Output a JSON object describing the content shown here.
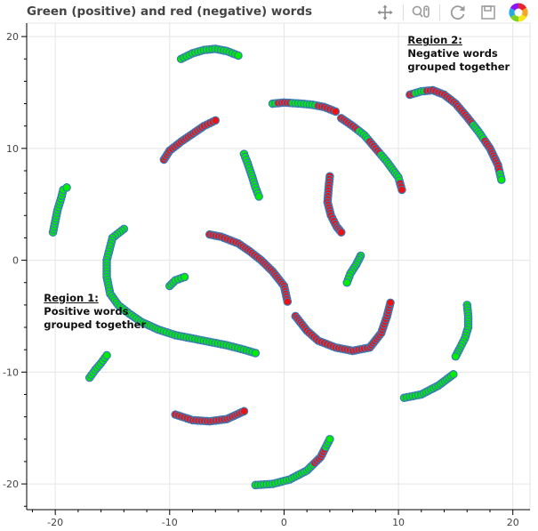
{
  "title": "Green (positive) and red (negative) words",
  "toolbar": {
    "tools": [
      {
        "name": "pan-tool",
        "icon": "pan-icon",
        "active": true
      },
      {
        "name": "wheel-zoom-tool",
        "icon": "wheel-zoom-icon",
        "active": false
      },
      {
        "name": "reset-tool",
        "icon": "reset-icon",
        "active": false
      },
      {
        "name": "save-tool",
        "icon": "save-icon",
        "active": false
      },
      {
        "name": "bokeh-logo",
        "icon": "bokeh-logo-icon",
        "active": false
      }
    ]
  },
  "annotations": [
    {
      "heading": "Region 1:",
      "lines": [
        "Positive words",
        "grouped together"
      ],
      "x": -21,
      "y": -3.5
    },
    {
      "heading": "Region 2:",
      "lines": [
        "Negative words",
        "grouped together"
      ],
      "x": 10.8,
      "y": 19.5
    }
  ],
  "chart_data": {
    "type": "scatter",
    "title": "Green (positive) and red (negative) words",
    "xlabel": "",
    "ylabel": "",
    "xlim": [
      -22.5,
      21.5
    ],
    "ylim": [
      -22.3,
      21.2
    ],
    "xticks": [
      -20,
      -10,
      0,
      10,
      20
    ],
    "yticks": [
      -20,
      -10,
      0,
      10,
      20
    ],
    "grid": true,
    "colors": {
      "positive": "#00ee00",
      "negative": "#ee1111",
      "neutral": "#3a7ab8",
      "outline": "#3a7ab8"
    },
    "clusters": [
      {
        "pts": [
          [
            -9,
            18
          ],
          [
            -8,
            18.5
          ],
          [
            -7,
            18.8
          ],
          [
            -6,
            18.9
          ],
          [
            -5,
            18.7
          ],
          [
            -4,
            18.3
          ]
        ],
        "labels": "PPPPPP"
      },
      {
        "pts": [
          [
            -10.5,
            9
          ],
          [
            -10,
            9.8
          ],
          [
            -9,
            10.6
          ],
          [
            -8,
            11.3
          ],
          [
            -7,
            12
          ],
          [
            -6,
            12.5
          ]
        ],
        "labels": "NNNNNN"
      },
      {
        "pts": [
          [
            -20.2,
            2.5
          ],
          [
            -20,
            3.5
          ],
          [
            -19.8,
            4.5
          ],
          [
            -19.5,
            5.5
          ],
          [
            -19.3,
            6.3
          ],
          [
            -19,
            6.5
          ]
        ],
        "labels": "PPPPPP"
      },
      {
        "pts": [
          [
            -3.5,
            9.5
          ],
          [
            -3.2,
            8.7
          ],
          [
            -2.8,
            7.5
          ],
          [
            -2.5,
            6.5
          ],
          [
            -2.2,
            5.7
          ]
        ],
        "labels": "PPPPP"
      },
      {
        "pts": [
          [
            -1,
            14
          ],
          [
            0,
            14.1
          ],
          [
            1.5,
            14
          ],
          [
            2.5,
            13.9
          ],
          [
            3.5,
            13.7
          ],
          [
            4.5,
            13.3
          ]
        ],
        "labels": "PNPPNN"
      },
      {
        "pts": [
          [
            5,
            12.7
          ],
          [
            6,
            12
          ],
          [
            7,
            11.2
          ],
          [
            8,
            10
          ],
          [
            9,
            8.8
          ],
          [
            10,
            7.4
          ],
          [
            10.3,
            6.3
          ]
        ],
        "labels": "NNPNPPN"
      },
      {
        "pts": [
          [
            11,
            14.8
          ],
          [
            12,
            15.1
          ],
          [
            13,
            15.2
          ],
          [
            14,
            14.8
          ],
          [
            15,
            14
          ],
          [
            16,
            12.8
          ],
          [
            17,
            11.5
          ],
          [
            18,
            10
          ],
          [
            18.7,
            8.5
          ],
          [
            19,
            7.2
          ]
        ],
        "labels": "NPNNNNPNNP"
      },
      {
        "pts": [
          [
            4,
            7.5
          ],
          [
            3.9,
            6.5
          ],
          [
            3.8,
            5.2
          ],
          [
            4.1,
            4
          ],
          [
            4.6,
            3
          ],
          [
            5,
            2.5
          ]
        ],
        "labels": "NNNNNN"
      },
      {
        "pts": [
          [
            6.7,
            0.4
          ],
          [
            6.3,
            -0.4
          ],
          [
            5.8,
            -1.2
          ],
          [
            5.5,
            -2
          ]
        ],
        "labels": "PPPP"
      },
      {
        "pts": [
          [
            -14,
            2.8
          ],
          [
            -15,
            2
          ],
          [
            -15.5,
            0
          ],
          [
            -15.5,
            -1.5
          ],
          [
            -15.2,
            -3
          ],
          [
            -14.5,
            -4
          ],
          [
            -13.5,
            -4.8
          ],
          [
            -12.5,
            -5.5
          ],
          [
            -11,
            -6.2
          ],
          [
            -9.5,
            -6.7
          ],
          [
            -8,
            -7
          ],
          [
            -6.5,
            -7.3
          ],
          [
            -5,
            -7.6
          ],
          [
            -3.5,
            -8
          ],
          [
            -2.5,
            -8.3
          ]
        ],
        "labels": "PPPPPPPPPPPPPPP"
      },
      {
        "pts": [
          [
            -10,
            -2.3
          ],
          [
            -9.5,
            -1.8
          ],
          [
            -8.7,
            -1.5
          ]
        ],
        "labels": "PPP"
      },
      {
        "pts": [
          [
            -6.5,
            2.3
          ],
          [
            -5.5,
            2.1
          ],
          [
            -4,
            1.5
          ],
          [
            -3,
            0.8
          ],
          [
            -2,
            0
          ],
          [
            -1,
            -1
          ],
          [
            0,
            -2.3
          ],
          [
            0.3,
            -3.7
          ]
        ],
        "labels": "NNNNNNNN"
      },
      {
        "pts": [
          [
            1,
            -5
          ],
          [
            2,
            -6.3
          ],
          [
            3,
            -7.2
          ],
          [
            4.5,
            -7.8
          ],
          [
            6,
            -8.1
          ],
          [
            7.5,
            -7.8
          ],
          [
            8.5,
            -6.5
          ],
          [
            9,
            -5
          ],
          [
            9.3,
            -3.8
          ]
        ],
        "labels": "NNNNNNNNN"
      },
      {
        "pts": [
          [
            -17,
            -10.5
          ],
          [
            -16.5,
            -9.8
          ],
          [
            -16,
            -9.2
          ],
          [
            -15.5,
            -8.5
          ]
        ],
        "labels": "PPPP"
      },
      {
        "pts": [
          [
            -9.5,
            -13.8
          ],
          [
            -8,
            -14.3
          ],
          [
            -6.5,
            -14.4
          ],
          [
            -5,
            -14.2
          ],
          [
            -3.5,
            -13.5
          ]
        ],
        "labels": "NNNNN"
      },
      {
        "pts": [
          [
            -2.5,
            -20.1
          ],
          [
            -1,
            -20
          ],
          [
            0.5,
            -19.6
          ],
          [
            2,
            -18.8
          ],
          [
            3.2,
            -17.6
          ],
          [
            4,
            -16
          ]
        ],
        "labels": "PPPPNP"
      },
      {
        "pts": [
          [
            10.5,
            -12.3
          ],
          [
            12,
            -12
          ],
          [
            13.5,
            -11.2
          ],
          [
            14.8,
            -10.2
          ]
        ],
        "labels": "PPPP"
      },
      {
        "pts": [
          [
            16,
            -4
          ],
          [
            16.1,
            -5
          ],
          [
            16.1,
            -6
          ],
          [
            15.8,
            -7
          ],
          [
            15.3,
            -8
          ],
          [
            15,
            -8.6
          ]
        ],
        "labels": "PPPPPP"
      }
    ]
  }
}
